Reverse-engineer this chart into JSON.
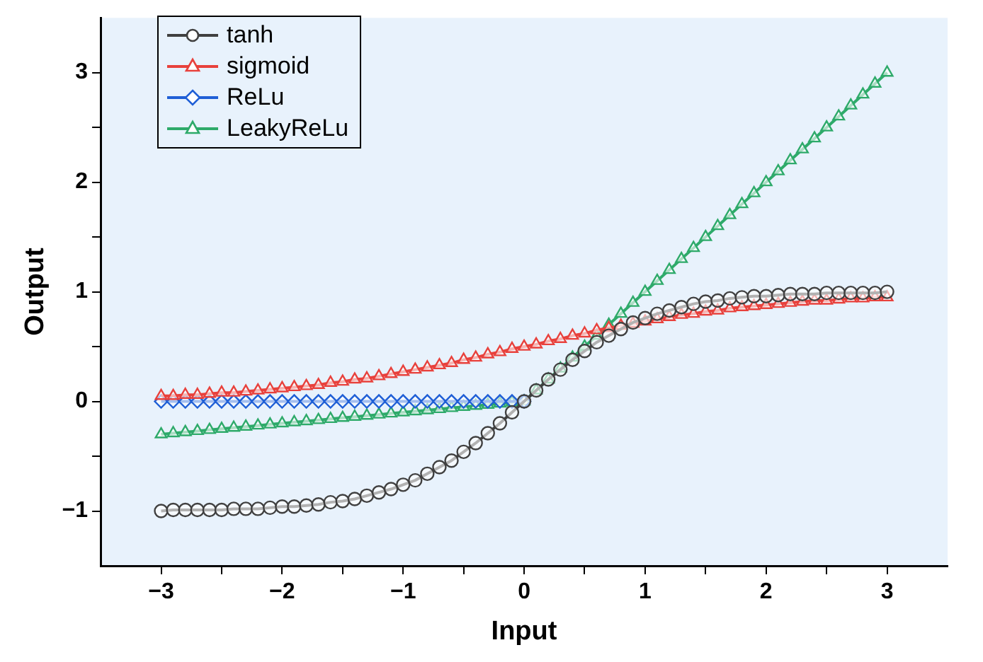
{
  "chart_data": {
    "type": "line",
    "xlabel": "Input",
    "ylabel": "Output",
    "x": [
      -3,
      -2.9,
      -2.8,
      -2.7,
      -2.6,
      -2.5,
      -2.4,
      -2.3,
      -2.2,
      -2.1,
      -2,
      -1.9,
      -1.8,
      -1.7,
      -1.6,
      -1.5,
      -1.4,
      -1.3,
      -1.2,
      -1.1,
      -1,
      -0.9,
      -0.8,
      -0.7,
      -0.6,
      -0.5,
      -0.4,
      -0.3,
      -0.2,
      -0.1,
      0,
      0.1,
      0.2,
      0.3,
      0.4,
      0.5,
      0.6,
      0.7,
      0.8,
      0.9,
      1,
      1.1,
      1.2,
      1.3,
      1.4,
      1.5,
      1.6,
      1.7,
      1.8,
      1.9,
      2,
      2.1,
      2.2,
      2.3,
      2.4,
      2.5,
      2.6,
      2.7,
      2.8,
      2.9,
      3
    ],
    "series": [
      {
        "name": "tanh",
        "color": "#404040",
        "marker": "circle",
        "values": [
          -1,
          -0.99,
          -0.99,
          -0.99,
          -0.99,
          -0.99,
          -0.98,
          -0.98,
          -0.98,
          -0.97,
          -0.96,
          -0.96,
          -0.95,
          -0.94,
          -0.92,
          -0.91,
          -0.89,
          -0.86,
          -0.83,
          -0.8,
          -0.76,
          -0.72,
          -0.66,
          -0.6,
          -0.54,
          -0.46,
          -0.38,
          -0.29,
          -0.2,
          -0.1,
          0,
          0.1,
          0.2,
          0.29,
          0.38,
          0.46,
          0.54,
          0.6,
          0.66,
          0.72,
          0.76,
          0.8,
          0.83,
          0.86,
          0.89,
          0.91,
          0.92,
          0.94,
          0.95,
          0.96,
          0.96,
          0.97,
          0.98,
          0.98,
          0.98,
          0.99,
          0.99,
          0.99,
          0.99,
          0.99,
          1
        ]
      },
      {
        "name": "sigmoid",
        "color": "#e8413c",
        "marker": "triangle",
        "values": [
          0.05,
          0.05,
          0.06,
          0.06,
          0.07,
          0.08,
          0.08,
          0.09,
          0.1,
          0.11,
          0.12,
          0.13,
          0.14,
          0.15,
          0.17,
          0.18,
          0.2,
          0.21,
          0.23,
          0.25,
          0.27,
          0.29,
          0.31,
          0.33,
          0.35,
          0.38,
          0.4,
          0.43,
          0.45,
          0.48,
          0.5,
          0.52,
          0.55,
          0.57,
          0.6,
          0.62,
          0.65,
          0.67,
          0.69,
          0.71,
          0.73,
          0.75,
          0.77,
          0.79,
          0.8,
          0.82,
          0.83,
          0.85,
          0.86,
          0.87,
          0.88,
          0.89,
          0.9,
          0.91,
          0.92,
          0.92,
          0.93,
          0.94,
          0.94,
          0.95,
          0.95
        ]
      },
      {
        "name": "ReLu",
        "color": "#1f5fd6",
        "marker": "diamond",
        "values": [
          0,
          0,
          0,
          0,
          0,
          0,
          0,
          0,
          0,
          0,
          0,
          0,
          0,
          0,
          0,
          0,
          0,
          0,
          0,
          0,
          0,
          0,
          0,
          0,
          0,
          0,
          0,
          0,
          0,
          0,
          0,
          null,
          null,
          null,
          null,
          null,
          null,
          null,
          null,
          null,
          null,
          null,
          null,
          null,
          null,
          null,
          null,
          null,
          null,
          null,
          null,
          null,
          null,
          null,
          null,
          null,
          null,
          null,
          null,
          null,
          null
        ]
      },
      {
        "name": "LeakyReLu",
        "color": "#2eaa6a",
        "marker": "triangle",
        "values": [
          -0.3,
          -0.29,
          -0.28,
          -0.27,
          -0.26,
          -0.25,
          -0.24,
          -0.23,
          -0.22,
          -0.21,
          -0.2,
          -0.19,
          -0.18,
          -0.17,
          -0.16,
          -0.15,
          -0.14,
          -0.13,
          -0.12,
          -0.11,
          -0.1,
          -0.09,
          -0.08,
          -0.07,
          -0.06,
          -0.05,
          -0.04,
          -0.03,
          -0.02,
          -0.01,
          0,
          0.1,
          0.2,
          0.3,
          0.4,
          0.5,
          0.6,
          0.7,
          0.8,
          0.9,
          1,
          1.1,
          1.2,
          1.3,
          1.4,
          1.5,
          1.6,
          1.7,
          1.8,
          1.9,
          2,
          2.1,
          2.2,
          2.3,
          2.4,
          2.5,
          2.6,
          2.7,
          2.8,
          2.9,
          3
        ]
      }
    ],
    "xlim": [
      -3.5,
      3.5
    ],
    "xticks": [
      -3,
      {
        "value": -2.5,
        "label": null
      },
      -2,
      {
        "value": -1.5,
        "label": null
      },
      -1,
      {
        "value": -0.5,
        "label": null
      },
      0,
      {
        "value": 0.5,
        "label": null
      },
      1,
      {
        "value": 1.5,
        "label": null
      },
      2,
      {
        "value": 2.5,
        "label": null
      },
      3
    ],
    "ylim": [
      -1.5,
      3.5
    ],
    "yticks": [
      -1,
      {
        "value": -0.5,
        "label": null
      },
      0,
      {
        "value": 0.5,
        "label": null
      },
      1,
      {
        "value": 1.5,
        "label": null
      },
      2,
      {
        "value": 2.5,
        "label": null
      },
      3
    ],
    "grid": false,
    "legend": "top left"
  }
}
